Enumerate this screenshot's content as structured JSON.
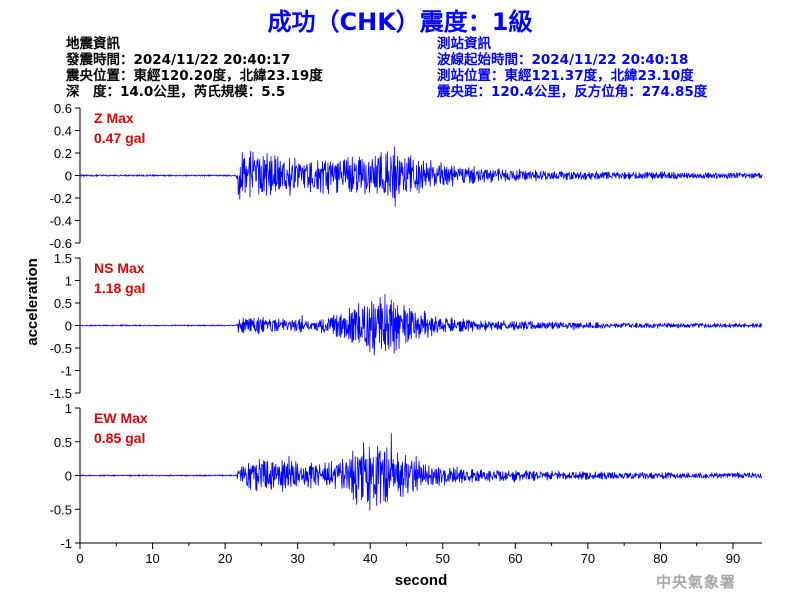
{
  "title": "成功（CHK）震度：1級",
  "event_info": {
    "heading": "地震資訊",
    "origin_time": "發震時間：2024/11/22 20:40:17",
    "epicenter": "震央位置：東經120.20度，北緯23.19度",
    "depth_magnitude": "深　度：14.0公里，芮氏規模：5.5"
  },
  "station_info": {
    "heading": "測站資訊",
    "waveform_start": "波線起始時間：2024/11/22 20:40:18",
    "location": "測站位置：東經121.37度，北緯23.10度",
    "distance": "震央距：120.4公里，反方位角：274.85度"
  },
  "agency": "中央氣象署",
  "colors": {
    "title": "#0000ff",
    "trace": "#0000ff",
    "max_label": "#e00000",
    "axis": "#000000"
  },
  "chart_data": {
    "type": "line",
    "xlabel": "second",
    "ylabel": "acceleration",
    "xlim": [
      0,
      94
    ],
    "x_ticks": [
      0,
      10,
      20,
      30,
      40,
      50,
      60,
      70,
      80,
      90
    ],
    "grid": false,
    "panels": [
      {
        "name": "Z",
        "max_label": "Z Max",
        "max_value": "0.47 gal",
        "ylim": [
          -0.6,
          0.6
        ],
        "y_ticks": [
          -0.6,
          -0.4,
          -0.2,
          0,
          0.2,
          0.4,
          0.6
        ],
        "y_tick_labels": [
          "-0.6",
          "-0.4",
          "-0.2",
          "0",
          "0.2",
          "0.4",
          "0.6"
        ],
        "envelope": [
          [
            0,
            0.008
          ],
          [
            21.5,
            0.008
          ],
          [
            22,
            0.3
          ],
          [
            24,
            0.25
          ],
          [
            30,
            0.18
          ],
          [
            36,
            0.2
          ],
          [
            40,
            0.22
          ],
          [
            43,
            0.3
          ],
          [
            46,
            0.2
          ],
          [
            50,
            0.13
          ],
          [
            56,
            0.08
          ],
          [
            65,
            0.05
          ],
          [
            80,
            0.04
          ],
          [
            94,
            0.03
          ]
        ]
      },
      {
        "name": "NS",
        "max_label": "NS Max",
        "max_value": "1.18 gal",
        "ylim": [
          -1.5,
          1.5
        ],
        "y_ticks": [
          -1.5,
          -1,
          -0.5,
          0,
          0.5,
          1,
          1.5
        ],
        "y_tick_labels": [
          "-1.5",
          "-1",
          "-0.5",
          "0",
          "0.5",
          "1",
          "1.5"
        ],
        "envelope": [
          [
            0,
            0.015
          ],
          [
            21.5,
            0.015
          ],
          [
            22,
            0.22
          ],
          [
            26,
            0.2
          ],
          [
            32,
            0.16
          ],
          [
            36,
            0.35
          ],
          [
            40,
            0.75
          ],
          [
            42,
            0.85
          ],
          [
            45,
            0.55
          ],
          [
            48,
            0.3
          ],
          [
            52,
            0.17
          ],
          [
            60,
            0.12
          ],
          [
            75,
            0.07
          ],
          [
            94,
            0.05
          ]
        ]
      },
      {
        "name": "EW",
        "max_label": "EW Max",
        "max_value": "0.85 gal",
        "ylim": [
          -1,
          1
        ],
        "y_ticks": [
          -1,
          -0.5,
          0,
          0.5,
          1
        ],
        "y_tick_labels": [
          "-1",
          "-0.5",
          "0",
          "0.5",
          "1"
        ],
        "envelope": [
          [
            0,
            0.01
          ],
          [
            21.5,
            0.01
          ],
          [
            22,
            0.22
          ],
          [
            25,
            0.3
          ],
          [
            32,
            0.22
          ],
          [
            36,
            0.3
          ],
          [
            39,
            0.55
          ],
          [
            41,
            0.65
          ],
          [
            45,
            0.45
          ],
          [
            48,
            0.22
          ],
          [
            55,
            0.11
          ],
          [
            65,
            0.08
          ],
          [
            80,
            0.06
          ],
          [
            94,
            0.05
          ]
        ]
      }
    ]
  }
}
